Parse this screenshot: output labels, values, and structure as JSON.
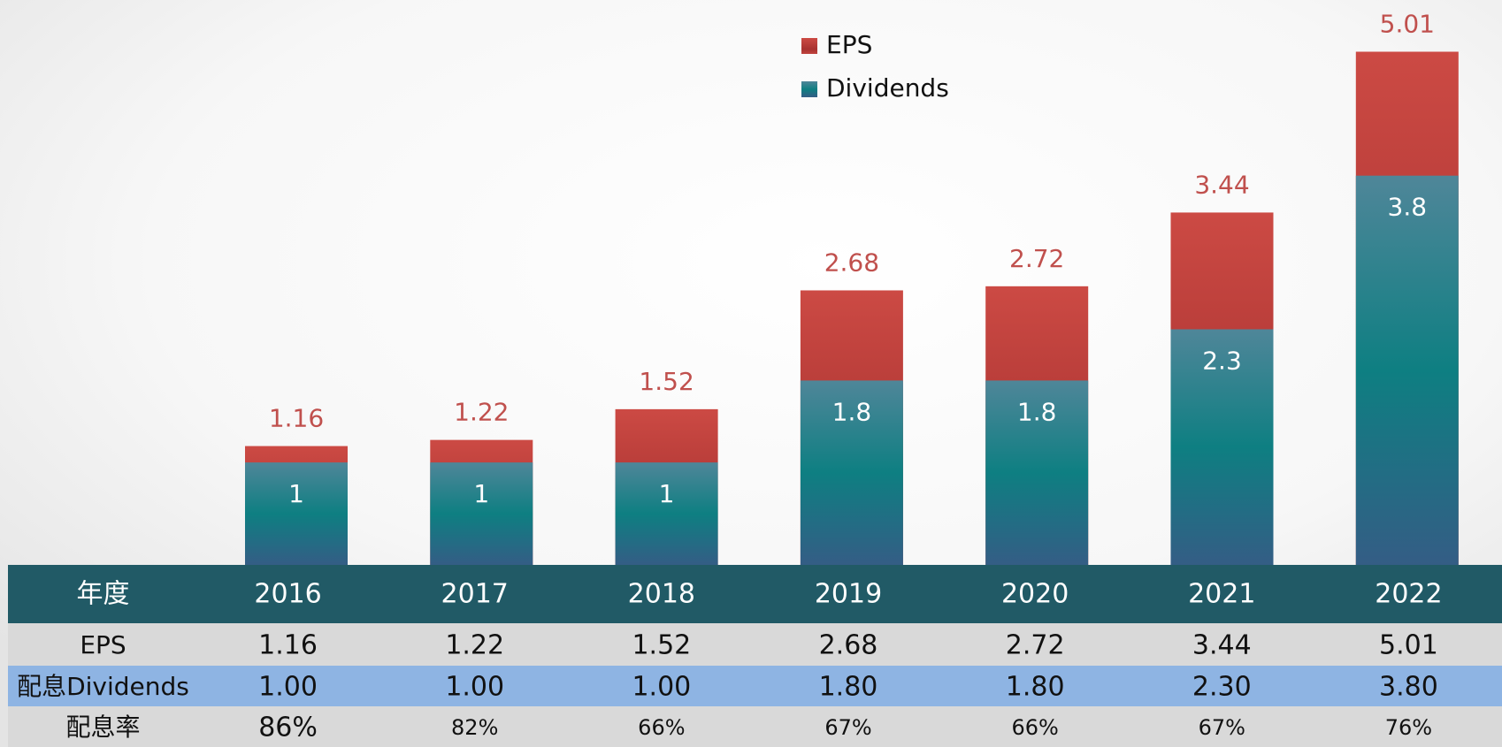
{
  "chart_data": {
    "type": "bar",
    "series": [
      {
        "name": "EPS",
        "color": "#c0504d",
        "values": [
          1.16,
          1.22,
          1.52,
          2.68,
          2.72,
          3.44,
          5.01
        ]
      },
      {
        "name": "Dividends",
        "color": "#0e7f82",
        "values": [
          1,
          1,
          1,
          1.8,
          1.8,
          2.3,
          3.8
        ]
      }
    ]
  },
  "table": {
    "header": [
      "年度",
      "2016",
      "2017",
      "2018",
      "2019",
      "2020",
      "2021",
      "2022"
    ],
    "rows": [
      [
        "EPS",
        "1.16",
        "1.22",
        "1.52",
        "2.68",
        "2.72",
        "3.44",
        "5.01"
      ],
      [
        "配息Dividends",
        "1.00",
        "1.00",
        "1.00",
        "1.80",
        "1.80",
        "2.30",
        "3.80"
      ],
      [
        "配息率",
        "86%",
        "82%",
        "66%",
        "67%",
        "66%",
        "67%",
        "76%"
      ]
    ]
  }
}
